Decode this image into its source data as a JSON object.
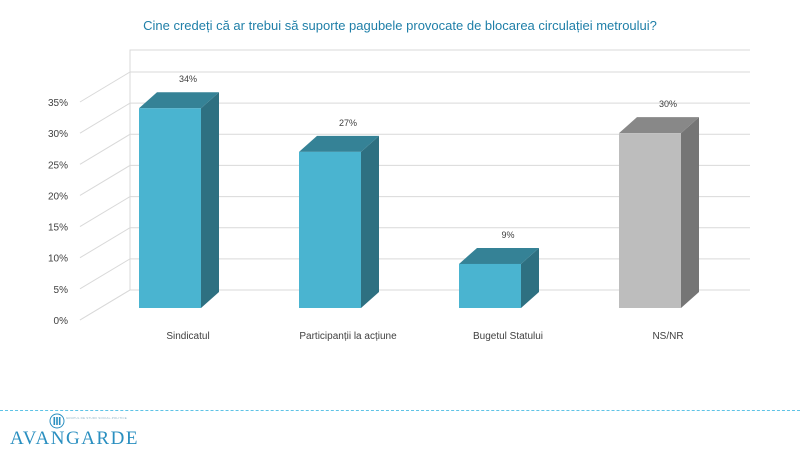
{
  "title": "Cine credeți că ar trebui să suporte pagubele provocate de blocarea circulației metroului?",
  "chart_data": {
    "type": "bar",
    "categories": [
      "Sindicatul",
      "Participanții la acțiune",
      "Bugetul Statului",
      "NS/NR"
    ],
    "values": [
      34,
      27,
      9,
      30
    ],
    "data_labels": [
      "34%",
      "27%",
      "9%",
      "30%"
    ],
    "bar_colors": [
      "#4ab4d0",
      "#4ab4d0",
      "#4ab4d0",
      "#bdbdbd"
    ],
    "ylim": [
      0,
      35
    ],
    "yticks": [
      "0%",
      "5%",
      "10%",
      "15%",
      "20%",
      "25%",
      "30%",
      "35%"
    ],
    "grid": true,
    "style": "3d-column"
  },
  "logo": {
    "name": "AVANGARDE",
    "tagline": "GRUPUL DE STUDII SOCIAL-POLITICE"
  }
}
